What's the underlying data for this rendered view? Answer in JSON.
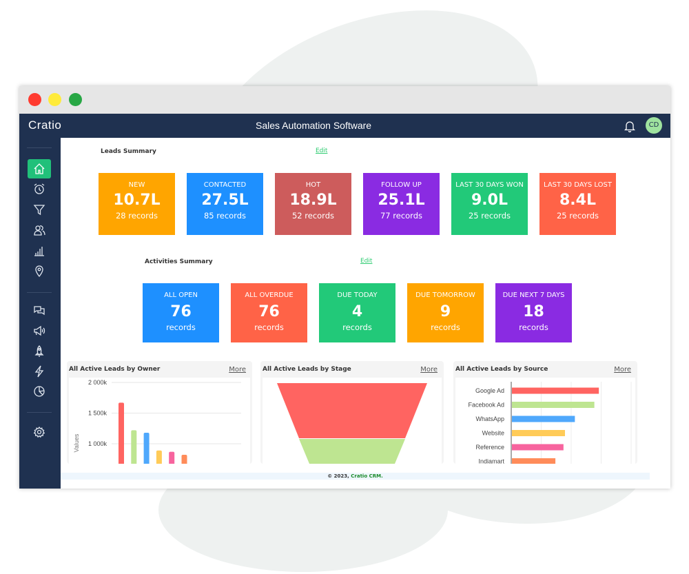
{
  "window": {
    "controls": {
      "close": "#ff3b30",
      "minimize": "#ffeb3b",
      "maximize": "#28a745"
    }
  },
  "nav": {
    "logo": "Cratio",
    "title": "Sales Automation Software",
    "avatar": "CD",
    "bell_icon": "bell-icon"
  },
  "sidebar": {
    "items": [
      "home",
      "alarm-clock",
      "funnel",
      "contacts",
      "bar-chart",
      "location-pin",
      "chat",
      "megaphone",
      "rocket",
      "lightning",
      "pie-chart",
      "settings"
    ],
    "active": "home",
    "accent": "#21c07a"
  },
  "leads": {
    "title": "Leads Summary",
    "edit": "Edit",
    "cards": [
      {
        "label": "NEW",
        "value": "10.7L",
        "records": "28 records",
        "color": "#ffa500"
      },
      {
        "label": "CONTACTED",
        "value": "27.5L",
        "records": "85 records",
        "color": "#1e90ff"
      },
      {
        "label": "HOT",
        "value": "18.9L",
        "records": "52 records",
        "color": "#cd5c5c"
      },
      {
        "label": "FOLLOW UP",
        "value": "25.1L",
        "records": "77 records",
        "color": "#8a2be2"
      },
      {
        "label": "LAST 30 DAYS WON",
        "value": "9.0L",
        "records": "25 records",
        "color": "#22c979"
      },
      {
        "label": "LAST 30 DAYS LOST",
        "value": "8.4L",
        "records": "25 records",
        "color": "#ff6347"
      }
    ]
  },
  "activities": {
    "title": "Activities Summary",
    "edit": "Edit",
    "cards": [
      {
        "label": "ALL OPEN",
        "value": "76",
        "records": "records",
        "color": "#1e90ff"
      },
      {
        "label": "ALL OVERDUE",
        "value": "76",
        "records": "records",
        "color": "#ff6347"
      },
      {
        "label": "DUE TODAY",
        "value": "4",
        "records": "records",
        "color": "#22c979"
      },
      {
        "label": "DUE TOMORROW",
        "value": "9",
        "records": "records",
        "color": "#ffa500"
      },
      {
        "label": "DUE NEXT 7 DAYS",
        "value": "18",
        "records": "records",
        "color": "#8a2be2"
      }
    ]
  },
  "panels": [
    {
      "title": "All Active Leads by Owner",
      "more": "More"
    },
    {
      "title": "All Active Leads by Stage",
      "more": "More"
    },
    {
      "title": "All Active Leads by Source",
      "more": "More"
    }
  ],
  "chart_data": [
    {
      "type": "bar",
      "ylabel": "Values",
      "yticks": [
        "2 000k",
        "1 500k",
        "1 000k"
      ],
      "values": [
        1670,
        1220,
        1180,
        890,
        870,
        820
      ],
      "colors": [
        "#ff6461",
        "#bee591",
        "#4fa8fc",
        "#ffcb58",
        "#f7649e",
        "#ff8c5a"
      ],
      "ylim_visible": [
        700,
        2000
      ],
      "grid": true
    },
    {
      "type": "funnel",
      "segments": [
        {
          "color": "#ff6461"
        },
        {
          "color": "#bee591"
        }
      ]
    },
    {
      "type": "bar",
      "orientation": "horizontal",
      "categories": [
        "Google Ad",
        "Facebook Ad",
        "WhatsApp",
        "Website",
        "Reference",
        "Indiamart"
      ],
      "values": [
        2.9,
        2.75,
        2.1,
        1.77,
        1.72,
        1.45
      ],
      "xlim": [
        0,
        4
      ],
      "colors": [
        "#ff6461",
        "#bee591",
        "#4fa8fc",
        "#ffcb58",
        "#f7649e",
        "#ff8c5a"
      ],
      "grid": true
    }
  ],
  "footer": {
    "prefix": "© 2023, ",
    "brand": "Cratio CRM."
  }
}
